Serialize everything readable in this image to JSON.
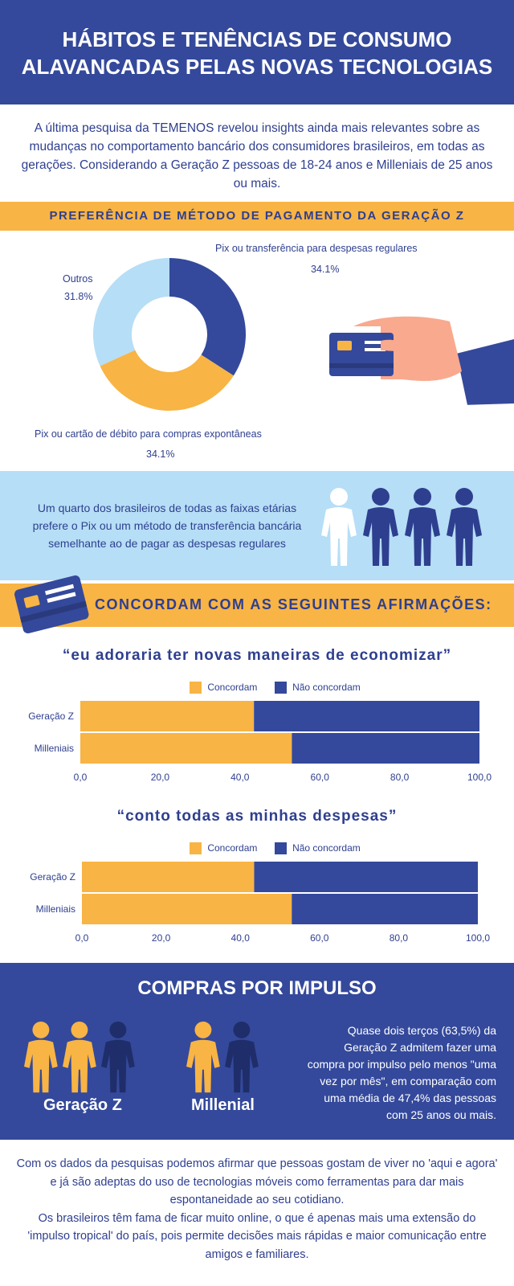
{
  "header": {
    "title_line1": "HÁBITOS E TENÊNCIAS DE CONSUMO",
    "title_line2": "ALAVANCADAS PELAS NOVAS TECNOLOGIAS"
  },
  "intro": {
    "text": "A última pesquisa da TEMENOS revelou insights ainda mais relevantes sobre as mudanças no comportamento bancário dos consumidores brasileiros, em todas as gerações. Considerando a Geração Z pessoas de 18-24 anos e Milleniais de 25 anos ou mais."
  },
  "section1": {
    "title": "PREFERÊNCIA DE MÉTODO DE PAGAMENTO DA GERAÇÃO Z"
  },
  "colors": {
    "navy": "#34499b",
    "yellow": "#f8b444",
    "light_blue": "#b6def6",
    "skin": "#f9a98e",
    "white": "#ffffff"
  },
  "info_band": {
    "text": "Um quarto dos brasileiros de todas as faixas etárias prefere o Pix ou um método de transferência bancária semelhante ao de pagar as despesas regulares"
  },
  "section2": {
    "title": "CONCORDAM COM AS SEGUINTES  AFIRMAÇÕES:"
  },
  "chart_data": [
    {
      "type": "pie",
      "labels": [
        "Pix ou transferência para despesas regulares",
        "Pix ou cartão de débito para compras expontâneas",
        "Outros"
      ],
      "values": [
        34.1,
        34.1,
        31.8
      ],
      "value_labels": [
        "34.1%",
        "34.1%",
        "31.8%"
      ],
      "colors": [
        "#34499b",
        "#f8b444",
        "#b6def6"
      ],
      "donut": true
    },
    {
      "type": "bar",
      "orientation": "horizontal",
      "stacked": true,
      "title": "“eu adoraria ter novas maneiras de economizar”",
      "categories": [
        "Geração Z",
        "Milleniais"
      ],
      "series": [
        {
          "name": "Concordam",
          "values": [
            43.5,
            53.0
          ],
          "color": "#f8b444"
        },
        {
          "name": "Não concordam",
          "values": [
            56.5,
            47.0
          ],
          "color": "#34499b"
        }
      ],
      "xlim": [
        0,
        100
      ],
      "xticks": [
        "0,0",
        "20,0",
        "40,0",
        "60,0",
        "80,0",
        "100,0"
      ],
      "legend": "top"
    },
    {
      "type": "bar",
      "orientation": "horizontal",
      "stacked": true,
      "title": "“conto todas as minhas despesas”",
      "categories": [
        "Geração Z",
        "Milleniais"
      ],
      "series": [
        {
          "name": "Concordam",
          "values": [
            43.5,
            53.0
          ],
          "color": "#f8b444"
        },
        {
          "name": "Não concordam",
          "values": [
            56.5,
            47.0
          ],
          "color": "#34499b"
        }
      ],
      "xlim": [
        0,
        100
      ],
      "xticks": [
        "0,0",
        "20,0",
        "40,0",
        "60,0",
        "80,0",
        "100,0"
      ],
      "legend": "top"
    }
  ],
  "impulse": {
    "title": "COMPRAS POR IMPULSO",
    "group1": "Geração Z",
    "group2": "Millenial",
    "text": "Quase dois terços (63,5%) da Geração Z admitem fazer uma compra por impulso pelo menos \"uma vez por mês\", em comparação com uma média de 47,4% das pessoas com 25 anos ou mais."
  },
  "footer": {
    "p1": "Com os dados da pesquisas podemos afirmar que  pessoas gostam de viver no 'aqui e agora' e já são adeptas do uso de tecnologias móveis como ferramentas para dar mais espontaneidade ao seu cotidiano.",
    "p2": "Os brasileiros têm fama de ficar muito online, o que é apenas mais uma extensão do 'impulso tropical' do país, pois permite decisões mais rápidas e maior comunicação entre amigos e familiares."
  }
}
